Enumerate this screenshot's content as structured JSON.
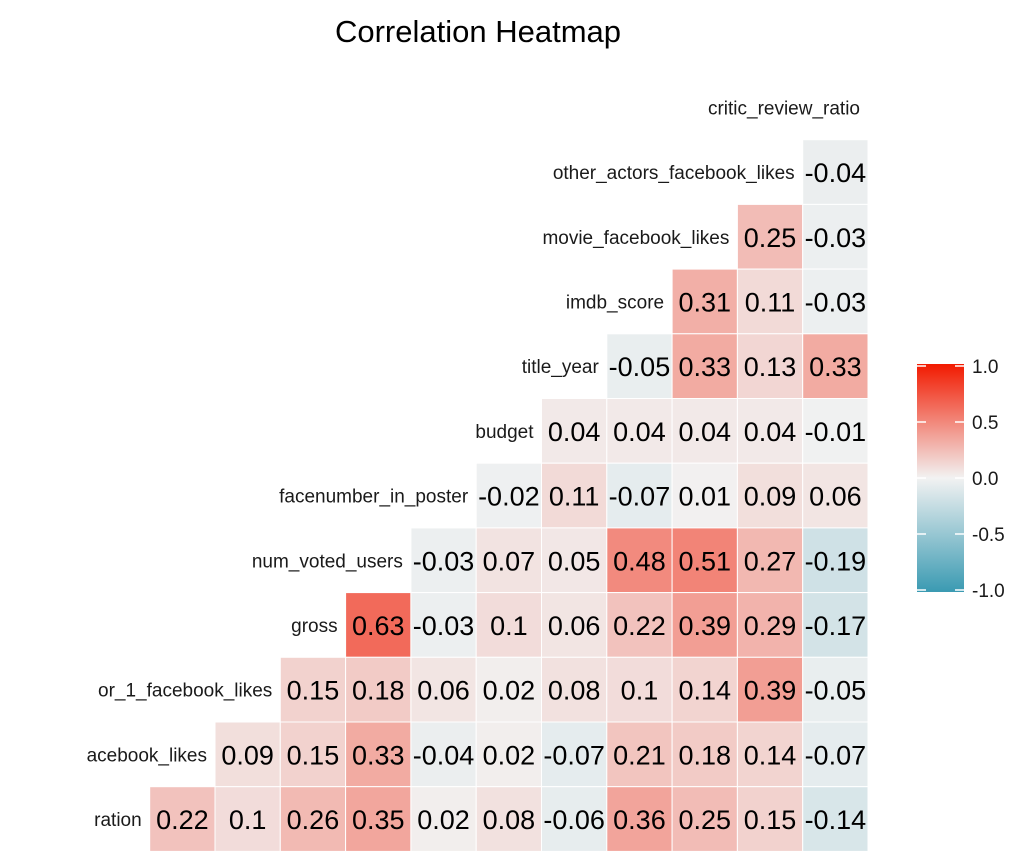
{
  "chart_data": {
    "type": "heatmap",
    "title": "Correlation Heatmap",
    "row_labels": [
      "critic_review_ratio",
      "other_actors_facebook_likes",
      "movie_facebook_likes",
      "imdb_score",
      "title_year",
      "budget",
      "facenumber_in_poster",
      "num_voted_users",
      "gross",
      "or_1_facebook_likes",
      "acebook_likes",
      "ration"
    ],
    "rows": [
      [],
      [
        "-0.04"
      ],
      [
        "0.25",
        "-0.03"
      ],
      [
        "0.31",
        "0.11",
        "-0.03"
      ],
      [
        "-0.05",
        "0.33",
        "0.13",
        "0.33"
      ],
      [
        "0.04",
        "0.04",
        "0.04",
        "0.04",
        "-0.01"
      ],
      [
        "-0.02",
        "0.11",
        "-0.07",
        "0.01",
        "0.09",
        "0.06"
      ],
      [
        "-0.03",
        "0.07",
        "0.05",
        "0.48",
        "0.51",
        "0.27",
        "-0.19"
      ],
      [
        "0.63",
        "-0.03",
        "0.1",
        "0.06",
        "0.22",
        "0.39",
        "0.29",
        "-0.17"
      ],
      [
        "0.15",
        "0.18",
        "0.06",
        "0.02",
        "0.08",
        "0.1",
        "0.14",
        "0.39",
        "-0.05"
      ],
      [
        "0.09",
        "0.15",
        "0.33",
        "-0.04",
        "0.02",
        "-0.07",
        "0.21",
        "0.18",
        "0.14",
        "-0.07"
      ],
      [
        "0.22",
        "0.1",
        "0.26",
        "0.35",
        "0.02",
        "0.08",
        "-0.06",
        "0.36",
        "0.25",
        "0.15",
        "-0.14"
      ]
    ],
    "color_scale": {
      "low": "#3a9ab2",
      "mid": "#f2f2f2",
      "high": "#f21a00",
      "limits": [
        -1.0,
        1.0
      ]
    },
    "legend": {
      "position": "right",
      "ticks": [
        "1.0",
        "0.5",
        "0.0",
        "-0.5",
        "-1.0"
      ]
    }
  }
}
